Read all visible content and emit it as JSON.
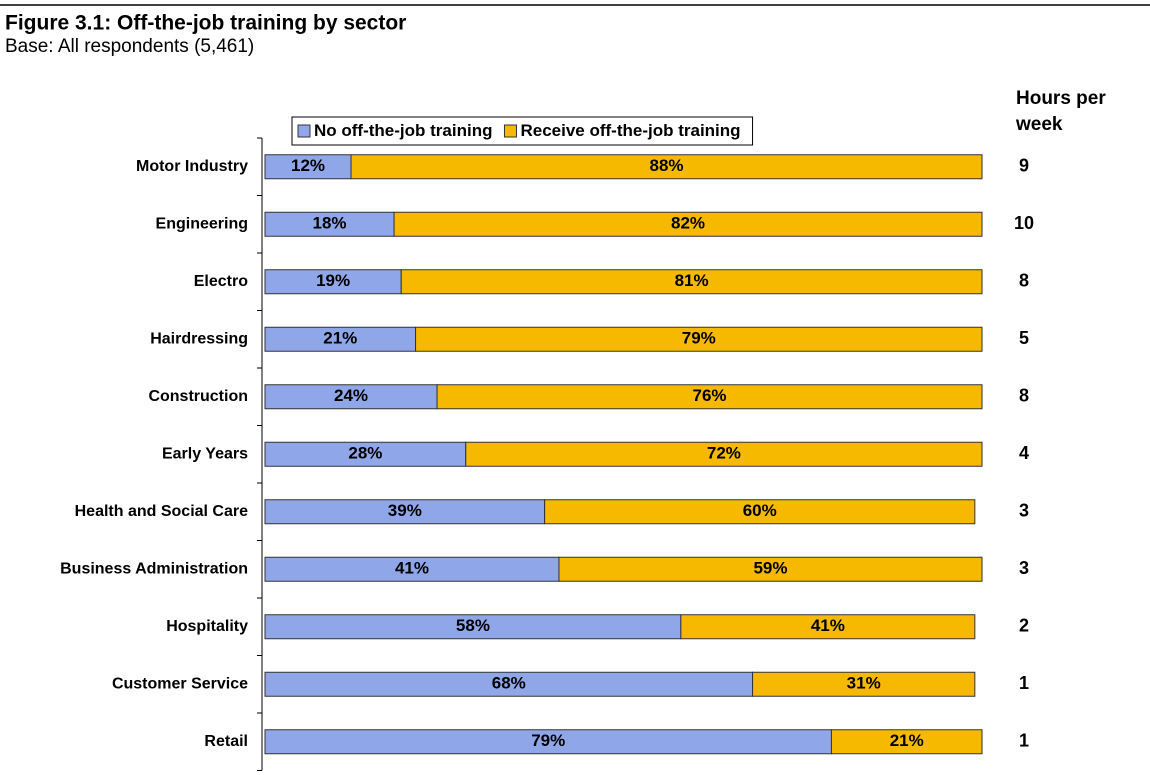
{
  "chart_data": {
    "type": "stacked-barh",
    "title": "Figure 3.1: Off-the-job training by sector",
    "subtitle": "Base: All respondents (5,461)",
    "categories": [
      "Motor Industry",
      "Engineering",
      "Electro",
      "Hairdressing",
      "Construction",
      "Early Years",
      "Health and Social Care",
      "Business Administration",
      "Hospitality",
      "Customer Service",
      "Retail"
    ],
    "series": [
      {
        "name": "No off-the-job training",
        "color": "#8fa6e9",
        "values": [
          12,
          18,
          19,
          21,
          24,
          28,
          39,
          41,
          58,
          68,
          79
        ],
        "value_labels": [
          "12%",
          "18%",
          "19%",
          "21%",
          "24%",
          "28%",
          "39%",
          "41%",
          "58%",
          "68%",
          "79%"
        ]
      },
      {
        "name": "Receive off-the-job training",
        "color": "#f6b900",
        "values": [
          88,
          82,
          81,
          79,
          76,
          72,
          60,
          59,
          41,
          31,
          21
        ],
        "value_labels": [
          "88%",
          "82%",
          "81%",
          "79%",
          "76%",
          "72%",
          "60%",
          "59%",
          "41%",
          "31%",
          "21%"
        ]
      }
    ],
    "xlim": [
      0,
      100
    ],
    "legend": "top",
    "hours_per_week": {
      "label": "Hours per week",
      "values": [
        9,
        10,
        8,
        5,
        8,
        4,
        3,
        3,
        2,
        1,
        1
      ]
    }
  }
}
